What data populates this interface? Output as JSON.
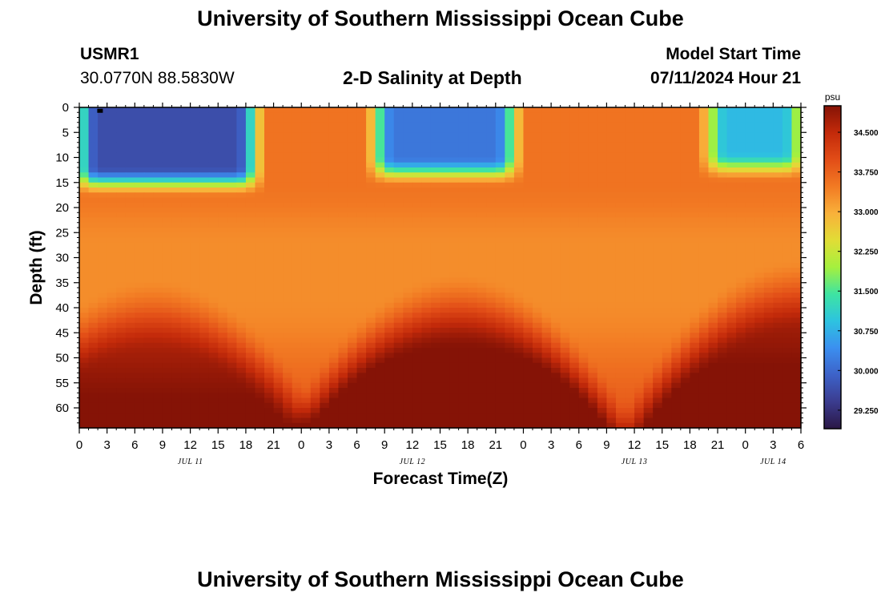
{
  "page": {
    "title": "University of Southern Mississippi Ocean Cube",
    "station_id": "USMR1",
    "coordinates": "30.0770N  88.5830W",
    "plot_title": "2-D Salinity at Depth",
    "model_start_label": "Model Start Time",
    "model_start_value": "07/11/2024 Hour 21",
    "footer_title": "University of Southern Mississippi Ocean Cube"
  },
  "colors": {
    "colormap": [
      "#2a1745",
      "#3b3c8f",
      "#3d62c8",
      "#3b8ff0",
      "#2dc3e0",
      "#3ee4a2",
      "#a5f03e",
      "#e1dd36",
      "#f9b13a",
      "#f27a23",
      "#e24d17",
      "#c32a0a",
      "#851306"
    ]
  },
  "chart_data": {
    "type": "heatmap",
    "variable": "Salinity",
    "unit": "psu",
    "xlabel": "Forecast Time(Z)",
    "ylabel": "Depth (ft)",
    "x_tick_labels": [
      "0",
      "3",
      "6",
      "9",
      "12",
      "15",
      "18",
      "21",
      "0",
      "3",
      "6",
      "9",
      "12",
      "15",
      "18",
      "21",
      "0",
      "3",
      "6",
      "9",
      "12",
      "15",
      "18",
      "21",
      "0",
      "3",
      "6"
    ],
    "date_labels": [
      {
        "text": "JUL 11",
        "hours_since_start": 12
      },
      {
        "text": "JUL 12",
        "hours_since_start": 36
      },
      {
        "text": "JUL 13",
        "hours_since_start": 60
      },
      {
        "text": "JUL 14",
        "hours_since_start": 75
      }
    ],
    "xlim_hours": [
      0,
      78
    ],
    "y_tick_labels": [
      "0",
      "5",
      "10",
      "15",
      "20",
      "25",
      "30",
      "35",
      "40",
      "45",
      "50",
      "55",
      "60"
    ],
    "ylim_ft": [
      0,
      64
    ],
    "colorbar_ticks": [
      "29.250",
      "30.000",
      "30.750",
      "31.500",
      "32.250",
      "33.000",
      "33.750",
      "34.500"
    ],
    "colorbar_range": [
      28.9,
      35.0
    ],
    "fresh_surface_layers": [
      {
        "start_hour": 0,
        "end_hour": 19,
        "bottom_ft": 16,
        "min_psu": 29.4
      },
      {
        "start_hour": 32,
        "end_hour": 47,
        "bottom_ft": 14,
        "min_psu": 29.9
      },
      {
        "start_hour": 68,
        "end_hour": 78,
        "bottom_ft": 13,
        "min_psu": 30.6
      }
    ],
    "saline_bottom_domes": [
      {
        "center_hour": 8,
        "top_ft": 37,
        "max_psu": 34.6
      },
      {
        "center_hour": 41,
        "top_ft": 36,
        "max_psu": 34.9
      },
      {
        "center_hour": 78,
        "top_ft": 33,
        "max_psu": 34.8
      }
    ],
    "mid_water_psu": 33.3,
    "deep_max_point": {
      "hour": 75,
      "depth_ft": 63,
      "psu": 35.0
    }
  }
}
